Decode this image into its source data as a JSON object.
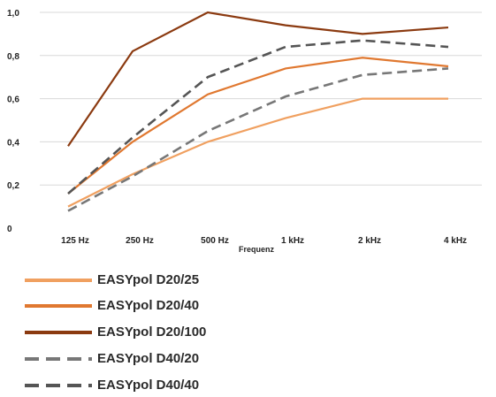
{
  "chart_data": {
    "type": "line",
    "xlabel": "Frequenz",
    "ylabel": "",
    "categories": [
      "125 Hz",
      "250 Hz",
      "500 Hz",
      "1 kHz",
      "2 kHz",
      "4 kHz"
    ],
    "y_ticks": [
      "0",
      "0,2",
      "0,4",
      "0,6",
      "0,8",
      "1,0"
    ],
    "ylim": [
      0,
      1.0
    ],
    "grid": "horizontal",
    "legend_position": "bottom",
    "series": [
      {
        "name": "EASYpol D20/25",
        "color": "#f0a060",
        "style": "solid",
        "values": [
          0.1,
          0.25,
          0.4,
          0.51,
          0.6,
          0.6
        ]
      },
      {
        "name": "EASYpol D20/40",
        "color": "#e07830",
        "style": "solid",
        "values": [
          0.16,
          0.4,
          0.62,
          0.74,
          0.79,
          0.75
        ]
      },
      {
        "name": "EASYpol D20/100",
        "color": "#8b3a10",
        "style": "solid",
        "values": [
          0.38,
          0.82,
          1.0,
          0.94,
          0.9,
          0.93
        ]
      },
      {
        "name": "EASYpol D40/20",
        "color": "#777777",
        "style": "dashed",
        "values": [
          0.08,
          0.24,
          0.45,
          0.61,
          0.71,
          0.74
        ]
      },
      {
        "name": "EASYpol D40/40",
        "color": "#555555",
        "style": "dashed",
        "values": [
          0.16,
          0.42,
          0.7,
          0.84,
          0.87,
          0.84
        ]
      }
    ]
  }
}
